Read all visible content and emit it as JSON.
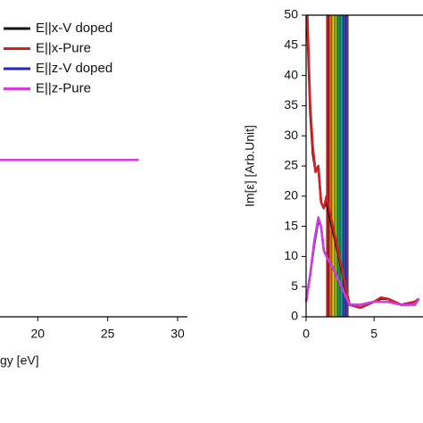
{
  "chart_data": [
    {
      "type": "line",
      "x_label": "gy [eV]",
      "xlim": [
        17.3,
        30.7
      ],
      "xticks": [
        20,
        25,
        30
      ],
      "ylim": [
        0,
        50
      ],
      "series": [
        {
          "name": "E||x-V doped",
          "color": "#111111",
          "x": [
            17.3,
            20,
            25,
            27.2
          ],
          "values": [
            26,
            26,
            26,
            26
          ]
        },
        {
          "name": "E||x-Pure",
          "color": "#d42020",
          "x": [
            17.3,
            20,
            25,
            27.2
          ],
          "values": [
            26,
            26,
            26,
            26
          ]
        },
        {
          "name": "E||z-V doped",
          "color": "#2424c4",
          "x": [
            17.3,
            20,
            25,
            27.2
          ],
          "values": [
            26,
            26,
            26,
            26
          ]
        },
        {
          "name": "E||z-Pure",
          "color": "#d43cd8",
          "x": [
            17.3,
            20,
            25,
            27.2
          ],
          "values": [
            26,
            26,
            26,
            26
          ]
        }
      ]
    },
    {
      "type": "line",
      "y_label": "Im[ε] [Arb.Unit]",
      "xlim": [
        0,
        8.6
      ],
      "xticks": [
        0,
        5
      ],
      "ylim": [
        0,
        50
      ],
      "yticks": [
        0,
        5,
        10,
        15,
        20,
        25,
        30,
        35,
        40,
        45,
        50
      ],
      "spectrum_band": {
        "xrange": [
          1.5,
          3.1
        ],
        "colors": [
          "#c81818",
          "#e07010",
          "#e8c818",
          "#90c020",
          "#20a040",
          "#20a0a0",
          "#2050c0",
          "#6030a0"
        ]
      },
      "series": [
        {
          "name": "E||x-V doped",
          "color": "#111111",
          "x": [
            0.1,
            0.3,
            0.5,
            0.7,
            0.9,
            1.1,
            1.3,
            1.5,
            3.2,
            4,
            5,
            5.5,
            6,
            7,
            8,
            8.3
          ],
          "values": [
            48,
            34,
            27,
            24,
            25,
            19,
            18,
            19,
            2,
            1.5,
            2.5,
            3,
            3,
            2,
            2.5,
            3
          ]
        },
        {
          "name": "E||x-Pure",
          "color": "#d42020",
          "x": [
            0.1,
            0.3,
            0.5,
            0.7,
            0.9,
            1.1,
            1.3,
            1.5,
            3.2,
            4,
            5,
            5.5,
            6,
            7,
            8,
            8.3
          ],
          "values": [
            50,
            35,
            28,
            24,
            25,
            19,
            18,
            20,
            2,
            1.5,
            2.5,
            3.2,
            3,
            2,
            2.5,
            3
          ]
        },
        {
          "name": "E||z-V doped",
          "color": "#2424c4",
          "x": [
            0,
            0.3,
            0.6,
            0.9,
            1.1,
            1.3,
            1.5,
            2,
            3.2,
            4,
            5,
            6,
            7,
            8,
            8.3
          ],
          "values": [
            2.5,
            7,
            12,
            16,
            15,
            11,
            10,
            8,
            2,
            2,
            2.5,
            2.5,
            2,
            2,
            3
          ]
        },
        {
          "name": "E||z-Pure",
          "color": "#d43cd8",
          "x": [
            0,
            0.3,
            0.6,
            0.9,
            1.1,
            1.3,
            1.5,
            2,
            3.2,
            4,
            5,
            6,
            7,
            8,
            8.3
          ],
          "values": [
            2.5,
            7,
            12.5,
            16.5,
            15,
            11,
            10,
            8,
            2,
            2,
            2.5,
            2.5,
            2,
            2,
            3
          ]
        }
      ]
    }
  ]
}
